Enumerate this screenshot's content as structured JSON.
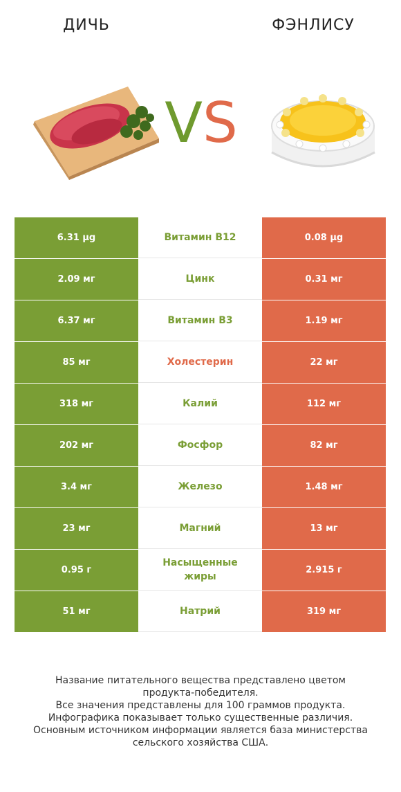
{
  "header": {
    "left_title": "ДИЧЬ",
    "right_title": "ФЭНЛИСУ",
    "vs_v": "V",
    "vs_s": "S"
  },
  "colors": {
    "left_winner": "#7a9e35",
    "right_winner": "#e06a4a"
  },
  "rows": [
    {
      "left": "6.31 µg",
      "name": "Витамин B12",
      "right": "0.08 µg",
      "winner": "left"
    },
    {
      "left": "2.09 мг",
      "name": "Цинк",
      "right": "0.31 мг",
      "winner": "left"
    },
    {
      "left": "6.37 мг",
      "name": "Витамин B3",
      "right": "1.19 мг",
      "winner": "left"
    },
    {
      "left": "85 мг",
      "name": "Холестерин",
      "right": "22 мг",
      "winner": "right"
    },
    {
      "left": "318 мг",
      "name": "Калий",
      "right": "112 мг",
      "winner": "left"
    },
    {
      "left": "202 мг",
      "name": "Фосфор",
      "right": "82 мг",
      "winner": "left"
    },
    {
      "left": "3.4 мг",
      "name": "Железо",
      "right": "1.48 мг",
      "winner": "left"
    },
    {
      "left": "23 мг",
      "name": "Магний",
      "right": "13 мг",
      "winner": "left"
    },
    {
      "left": "0.95 г",
      "name": "Насыщенные жиры",
      "right": "2.915 г",
      "winner": "left"
    },
    {
      "left": "51 мг",
      "name": "Натрий",
      "right": "319 мг",
      "winner": "left"
    }
  ],
  "footer": {
    "line1": "Название питательного вещества представлено цветом",
    "line2": "продукта-победителя.",
    "line3": "Все значения представлены для 100 граммов продукта.",
    "line4": "Инфографика показывает только существенные различия.",
    "line5": "Основным источником информации является база министерства",
    "line6": "сельского хозяйства США."
  }
}
